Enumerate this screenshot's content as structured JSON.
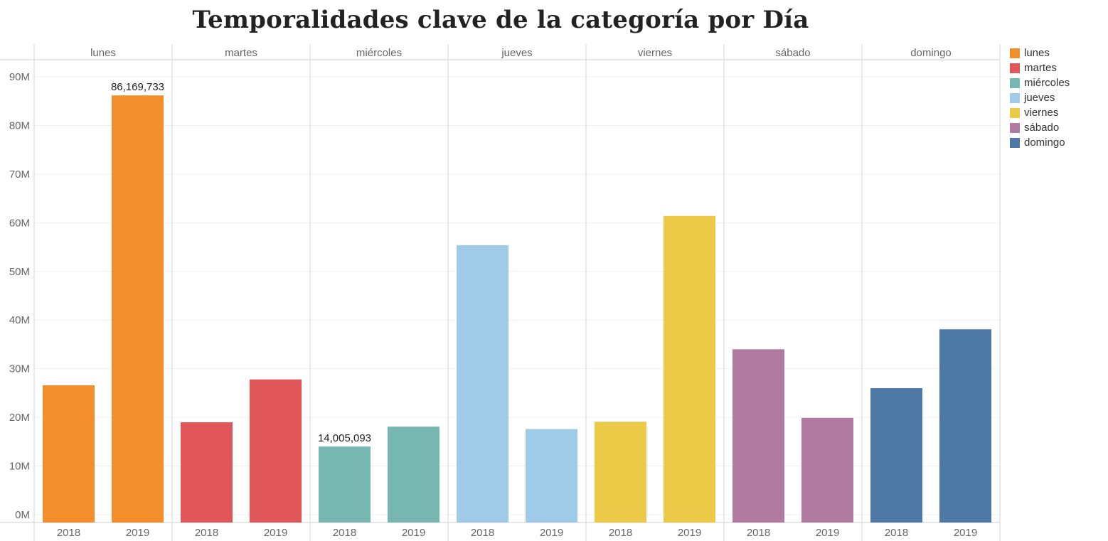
{
  "chart_data": {
    "type": "bar",
    "title": "Temporalidades clave de la categoría por Día",
    "xlabel": "",
    "ylabel": "",
    "ylim": [
      0,
      90000000
    ],
    "yticks": [
      0,
      10000000,
      20000000,
      30000000,
      40000000,
      50000000,
      60000000,
      70000000,
      80000000,
      90000000
    ],
    "ytick_labels": [
      "0M",
      "10M",
      "20M",
      "30M",
      "40M",
      "50M",
      "60M",
      "70M",
      "80M",
      "90M"
    ],
    "categories": [
      "2018",
      "2019"
    ],
    "grid": true,
    "legend_position": "right",
    "panels": [
      {
        "name": "lunes",
        "color": "#f28e2b",
        "values": [
          26600000,
          86169733
        ],
        "data_labels": [
          "",
          "86,169,733"
        ]
      },
      {
        "name": "martes",
        "color": "#e15759",
        "values": [
          19000000,
          27800000
        ],
        "data_labels": [
          "",
          ""
        ]
      },
      {
        "name": "miércoles",
        "color": "#76b7b2",
        "values": [
          14005093,
          18100000
        ],
        "data_labels": [
          "14,005,093",
          ""
        ]
      },
      {
        "name": "jueves",
        "color": "#a0cbe8",
        "values": [
          55400000,
          17600000
        ],
        "data_labels": [
          "",
          ""
        ]
      },
      {
        "name": "viernes",
        "color": "#edc948",
        "values": [
          19100000,
          61400000
        ],
        "data_labels": [
          "",
          ""
        ]
      },
      {
        "name": "sábado",
        "color": "#b07aa1",
        "values": [
          34000000,
          19900000
        ],
        "data_labels": [
          "",
          ""
        ]
      },
      {
        "name": "domingo",
        "color": "#4e79a7",
        "values": [
          26000000,
          38100000
        ],
        "data_labels": [
          "",
          ""
        ]
      }
    ],
    "legend": [
      {
        "label": "lunes",
        "color": "#f28e2b"
      },
      {
        "label": "martes",
        "color": "#e15759"
      },
      {
        "label": "miércoles",
        "color": "#76b7b2"
      },
      {
        "label": "jueves",
        "color": "#a0cbe8"
      },
      {
        "label": "viernes",
        "color": "#edc948"
      },
      {
        "label": "sábado",
        "color": "#b07aa1"
      },
      {
        "label": "domingo",
        "color": "#4e79a7"
      }
    ]
  }
}
